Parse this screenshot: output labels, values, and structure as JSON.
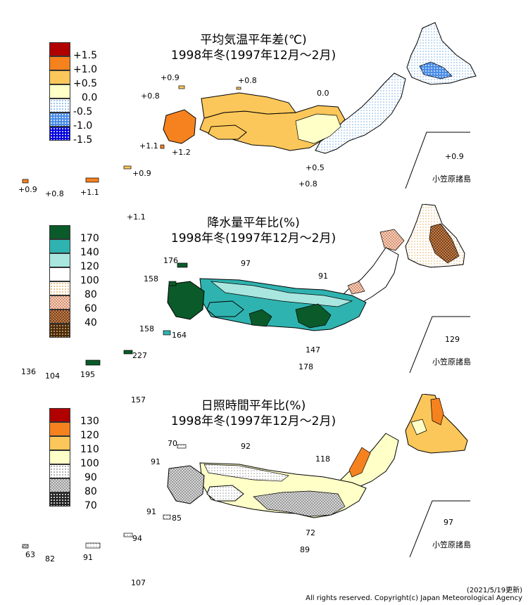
{
  "panels": [
    {
      "id": "temp",
      "title_line1": "平均気温平年差(℃)",
      "title_line2": "1998年冬(1997年12月～2月)",
      "legend": [
        {
          "label": "+1.5",
          "color": "#b00000",
          "pattern": "solid"
        },
        {
          "label": "+1.0",
          "color": "#f5821f",
          "pattern": "solid"
        },
        {
          "label": "+0.5",
          "color": "#fcc75a",
          "pattern": "solid"
        },
        {
          "label": "0.0",
          "color": "#ffffc8",
          "pattern": "solid"
        },
        {
          "label": "-0.5",
          "color": "#dcefff",
          "pattern": "dots"
        },
        {
          "label": "-1.0",
          "color": "#4a8de8",
          "pattern": "dots"
        },
        {
          "label": "-1.5",
          "color": "#0000e0",
          "pattern": "dots"
        }
      ],
      "values": [
        {
          "text": "+0.9"
        },
        {
          "text": "+0.8"
        },
        {
          "text": "+0.8"
        },
        {
          "text": "0.0"
        },
        {
          "text": "+1.1"
        },
        {
          "text": "+1.2"
        },
        {
          "text": "+0.9"
        },
        {
          "text": "+0.5"
        },
        {
          "text": "+0.8"
        },
        {
          "text": "+0.9"
        },
        {
          "text": "+0.8"
        },
        {
          "text": "+1.1"
        },
        {
          "text": "+0.9"
        },
        {
          "text": "+1.1"
        }
      ],
      "inset_label": "小笠原諸島"
    },
    {
      "id": "precip",
      "title_line1": "降水量平年比(%)",
      "title_line2": "1998年冬(1997年12月～2月)",
      "legend": [
        {
          "label": "170",
          "color": "#0b5a2a",
          "pattern": "solid"
        },
        {
          "label": "140",
          "color": "#2fb3b0",
          "pattern": "solid"
        },
        {
          "label": "120",
          "color": "#a8e6df",
          "pattern": "solid"
        },
        {
          "label": "100",
          "color": "#ffffff",
          "pattern": "solid"
        },
        {
          "label": "80",
          "color": "#fde9c8",
          "pattern": "dots"
        },
        {
          "label": "60",
          "color": "#e8b39a",
          "pattern": "check"
        },
        {
          "label": "40",
          "color": "#a0642a",
          "pattern": "check"
        }
      ],
      "values": [
        {
          "text": "176"
        },
        {
          "text": "97"
        },
        {
          "text": "158"
        },
        {
          "text": "91"
        },
        {
          "text": "158"
        },
        {
          "text": "164"
        },
        {
          "text": "227"
        },
        {
          "text": "147"
        },
        {
          "text": "178"
        },
        {
          "text": "136"
        },
        {
          "text": "104"
        },
        {
          "text": "195"
        },
        {
          "text": "129"
        },
        {
          "text": "157"
        }
      ],
      "inset_label": "小笠原諸島"
    },
    {
      "id": "sun",
      "title_line1": "日照時間平年比(%)",
      "title_line2": "1998年冬(1997年12月～2月)",
      "legend": [
        {
          "label": "130",
          "color": "#b00000",
          "pattern": "solid"
        },
        {
          "label": "120",
          "color": "#f5821f",
          "pattern": "solid"
        },
        {
          "label": "110",
          "color": "#fcc75a",
          "pattern": "solid"
        },
        {
          "label": "100",
          "color": "#ffffc8",
          "pattern": "solid"
        },
        {
          "label": "90",
          "color": "#e8e8e8",
          "pattern": "dots"
        },
        {
          "label": "80",
          "color": "#bdbdbd",
          "pattern": "check"
        },
        {
          "label": "70",
          "color": "#333333",
          "pattern": "dots"
        }
      ],
      "values": [
        {
          "text": "70"
        },
        {
          "text": "92"
        },
        {
          "text": "91"
        },
        {
          "text": "118"
        },
        {
          "text": "91"
        },
        {
          "text": "85"
        },
        {
          "text": "72"
        },
        {
          "text": "94"
        },
        {
          "text": "89"
        },
        {
          "text": "63"
        },
        {
          "text": "82"
        },
        {
          "text": "91"
        },
        {
          "text": "97"
        },
        {
          "text": "107"
        }
      ],
      "inset_label": "小笠原諸島"
    }
  ],
  "footer": {
    "updated": "(2021/5/19更新)",
    "copyright": "All rights reserved. Copyright(c) Japan Meteorological Agency"
  }
}
